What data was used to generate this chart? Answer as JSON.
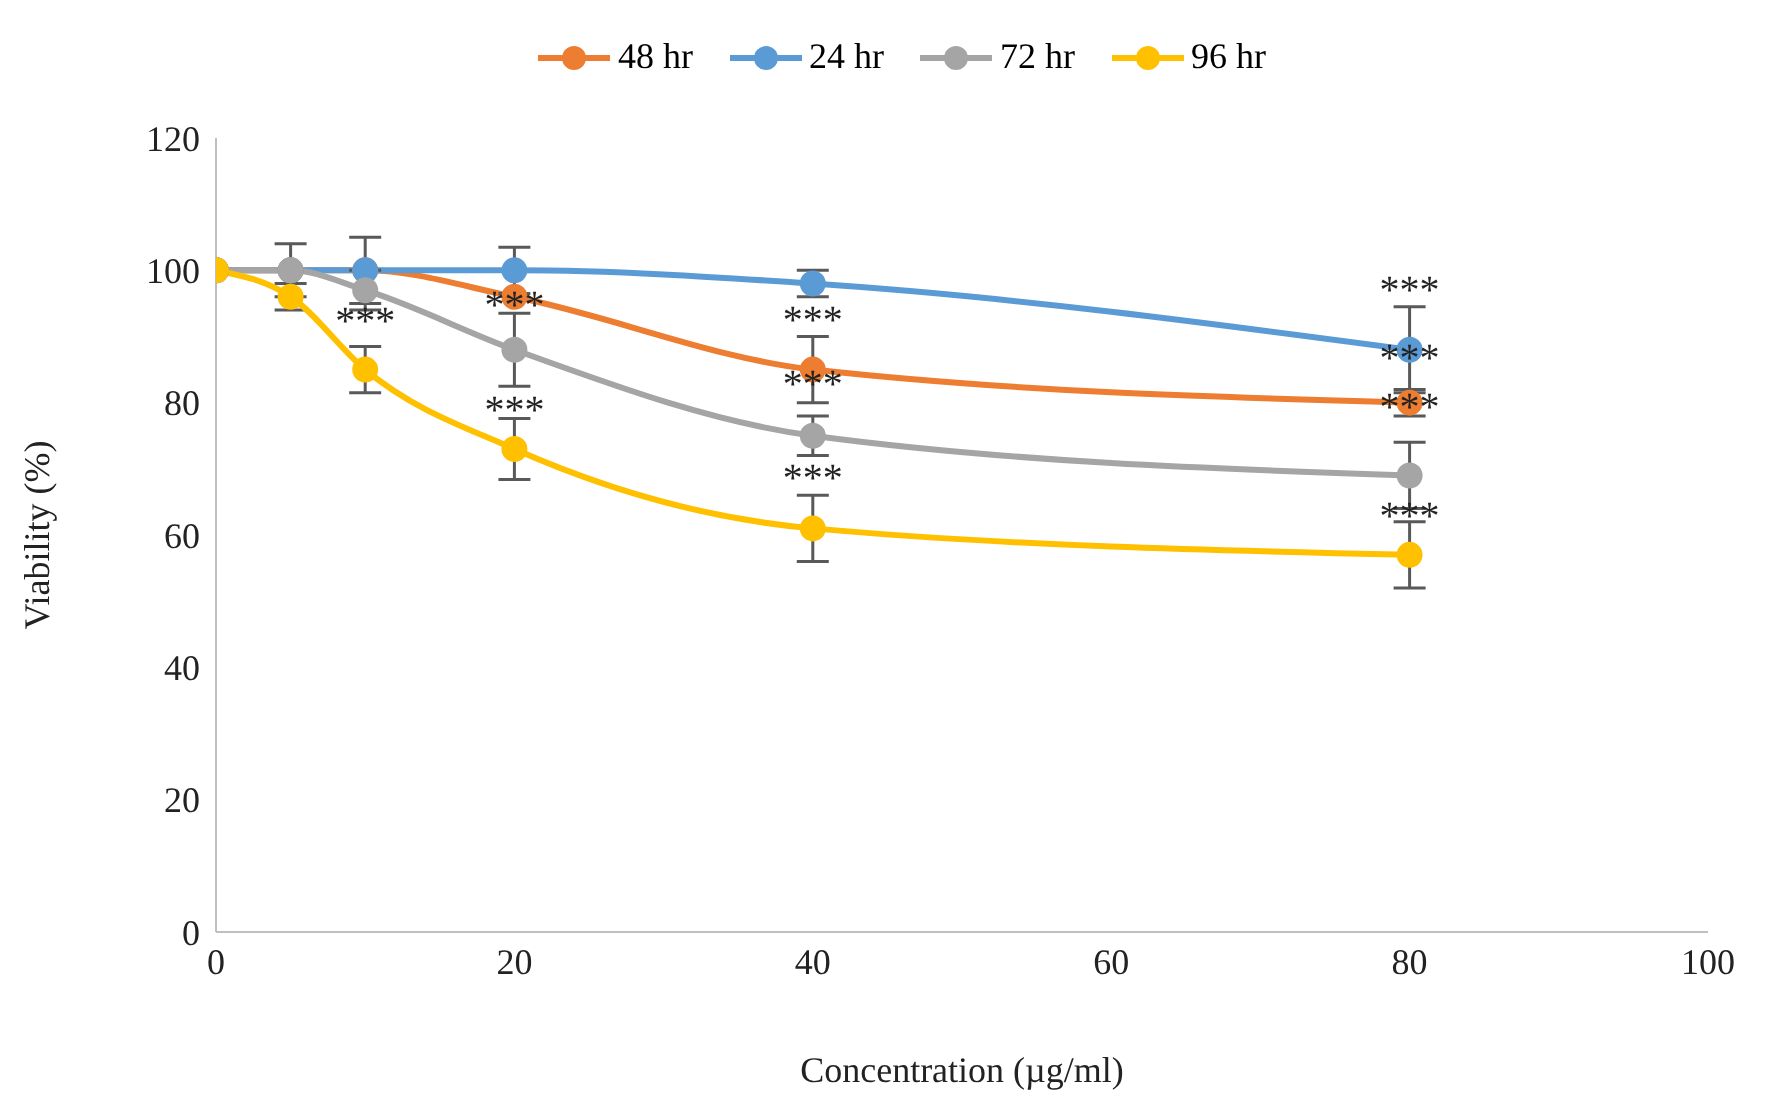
{
  "chart_data": {
    "type": "line",
    "xlabel": "Concentration (µg/ml)",
    "ylabel": "Viability (%)",
    "x": [
      0,
      5,
      10,
      20,
      40,
      80
    ],
    "series": [
      {
        "name": "48 hr",
        "color": "#ed7d31",
        "values": [
          100,
          100,
          100,
          96,
          85,
          80
        ],
        "errors": [
          null,
          null,
          null,
          null,
          5,
          2
        ]
      },
      {
        "name": "24 hr",
        "color": "#5b9bd5",
        "values": [
          100,
          100,
          100,
          100,
          98,
          88
        ],
        "errors": [
          null,
          null,
          5,
          3.5,
          2,
          6.5
        ]
      },
      {
        "name": "72 hr",
        "color": "#a5a5a5",
        "values": [
          100,
          100,
          97,
          88,
          75,
          69
        ],
        "errors": [
          null,
          4,
          3,
          5.5,
          3,
          5
        ]
      },
      {
        "name": "96 hr",
        "color": "#ffc000",
        "values": [
          100,
          96,
          85,
          73,
          61,
          57
        ],
        "errors": [
          null,
          2,
          3.5,
          4.6,
          5,
          5
        ]
      }
    ],
    "xlim": [
      0,
      100
    ],
    "xticks": [
      0,
      20,
      40,
      60,
      80,
      100
    ],
    "ylim": [
      0,
      120
    ],
    "yticks": [
      0,
      20,
      40,
      60,
      80,
      100,
      120
    ],
    "grid": false,
    "legend": "top",
    "marker": "circle",
    "line_style": "solid",
    "annotations": [
      {
        "text": "***",
        "x": 10,
        "y": 92.5
      },
      {
        "text": "***",
        "x": 20,
        "y": 95
      },
      {
        "text": "***",
        "x": 20,
        "y": 79
      },
      {
        "text": "***",
        "x": 40,
        "y": 90
      },
      {
        "text": "***",
        "x": 40,
        "y": 83
      },
      {
        "text": "***",
        "x": 40,
        "y": 66
      },
      {
        "text": "***",
        "x": 80,
        "y": 94.5
      },
      {
        "text": "***",
        "x": 80,
        "y": 87
      },
      {
        "text": "***",
        "x": 80,
        "y": 79.5
      },
      {
        "text": "***",
        "x": 80,
        "y": 63
      }
    ]
  }
}
